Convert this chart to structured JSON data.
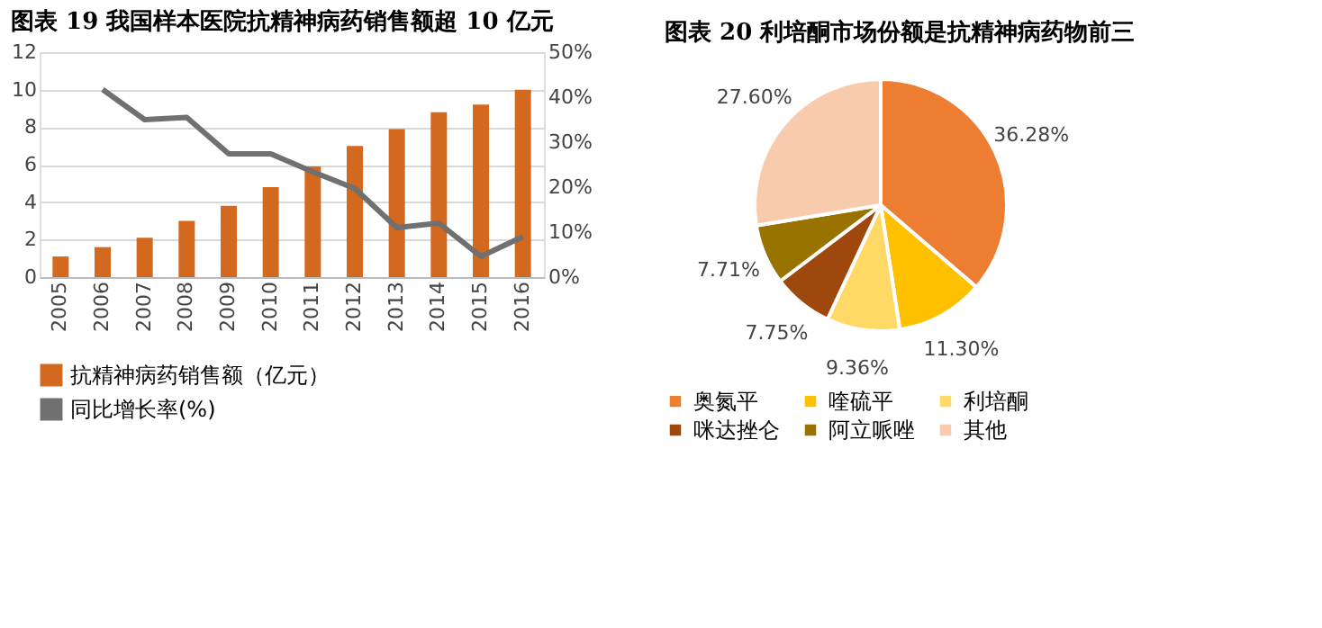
{
  "chart_data": [
    {
      "type": "bar",
      "title": "图表 19 我国样本医院抗精神病药销售额超 10 亿元",
      "categories": [
        "2005",
        "2006",
        "2007",
        "2008",
        "2009",
        "2010",
        "2011",
        "2012",
        "2013",
        "2014",
        "2015",
        "2016"
      ],
      "series": [
        {
          "name": "抗精神病药销售额（亿元）",
          "type": "bar",
          "color": "#d2691e",
          "values": [
            1.1,
            1.6,
            2.1,
            3.0,
            3.8,
            4.8,
            5.9,
            7.0,
            7.9,
            8.8,
            9.2,
            10.0
          ]
        },
        {
          "name": "同比增长率(%)",
          "type": "line",
          "axis": "y2",
          "color": "#707070",
          "values": [
            null,
            41.7,
            35,
            35.5,
            27.4,
            27.4,
            23.4,
            19.7,
            11,
            12,
            4.6,
            9
          ]
        }
      ],
      "ylim": [
        0,
        12
      ],
      "yticks": [
        0,
        2,
        4,
        6,
        8,
        10,
        12
      ],
      "y2lim": [
        0,
        50
      ],
      "y2ticks": [
        {
          "value": 0,
          "label": "0%"
        },
        {
          "value": 10,
          "label": "10%"
        },
        {
          "value": 20,
          "label": "20%"
        },
        {
          "value": 30,
          "label": "30%"
        },
        {
          "value": 40,
          "label": "40%"
        },
        {
          "value": 50,
          "label": "50%"
        }
      ],
      "grid": "y",
      "legend": "bottom",
      "marker": "none",
      "line_style": "solid"
    },
    {
      "type": "pie",
      "title": "图表 20 利培酮市场份额是抗精神病药物前三",
      "categories": [
        "奥氮平",
        "喹硫平",
        "利培酮",
        "咪达挫仑",
        "阿立哌唑",
        "其他"
      ],
      "values": [
        36.28,
        11.3,
        9.36,
        7.75,
        7.71,
        27.6
      ],
      "value_labels": [
        "36.28%",
        "11.30%",
        "9.36%",
        "7.75%",
        "7.71%",
        "27.60%"
      ],
      "colors": [
        "#ed7d31",
        "#ffc000",
        "#ffd966",
        "#9e480e",
        "#997300",
        "#f8cbad"
      ],
      "legend": "bottom"
    }
  ]
}
